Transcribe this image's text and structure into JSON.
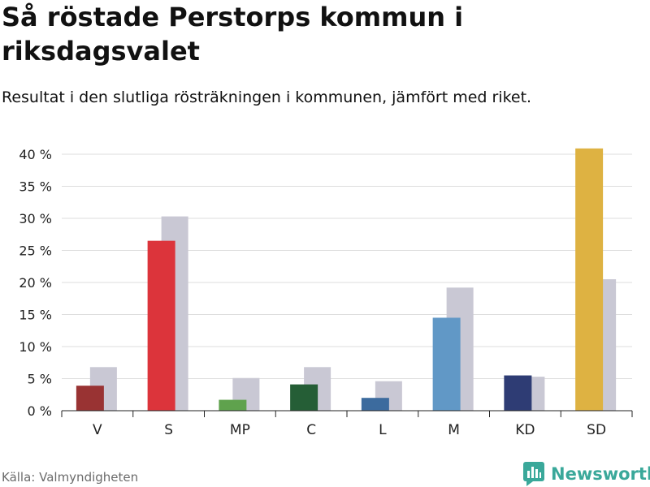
{
  "chart_data": {
    "type": "bar",
    "title": "Så röstade Perstorps kommun i riksdagsvalet",
    "subtitle": "Resultat i den slutliga rösträkningen i kommunen, jämfört med riket.",
    "xlabel": "",
    "ylabel": "",
    "ylim": [
      0,
      40
    ],
    "yticks": [
      0,
      5,
      10,
      15,
      20,
      25,
      30,
      35,
      40
    ],
    "ytick_labels": [
      "0 %",
      "5 %",
      "10 %",
      "15 %",
      "20 %",
      "25 %",
      "30 %",
      "35 %",
      "40 %"
    ],
    "grid": true,
    "categories": [
      "V",
      "S",
      "MP",
      "C",
      "L",
      "M",
      "KD",
      "SD"
    ],
    "series": [
      {
        "name": "Perstorps kommun",
        "values": [
          3.9,
          26.5,
          1.7,
          4.1,
          2.0,
          14.5,
          5.5,
          40.9
        ],
        "colors": [
          "#993333",
          "#dc343b",
          "#5fa24d",
          "#255e36",
          "#3c6b9e",
          "#6198c6",
          "#2e3c74",
          "#deb242"
        ]
      },
      {
        "name": "Riket",
        "values": [
          6.8,
          30.3,
          5.1,
          6.8,
          4.6,
          19.2,
          5.3,
          20.5
        ],
        "colors": [
          "#c9c8d4",
          "#c9c8d4",
          "#c9c8d4",
          "#c9c8d4",
          "#c9c8d4",
          "#c9c8d4",
          "#c9c8d4",
          "#c9c8d4"
        ]
      }
    ],
    "source": "Källa: Valmyndigheten"
  },
  "brand": {
    "name": "Newsworthy",
    "accent": "#3aa89a",
    "icon": "bar-chart-speech-icon"
  },
  "colors": {
    "grid": "#dddddd",
    "axis": "#222222"
  }
}
